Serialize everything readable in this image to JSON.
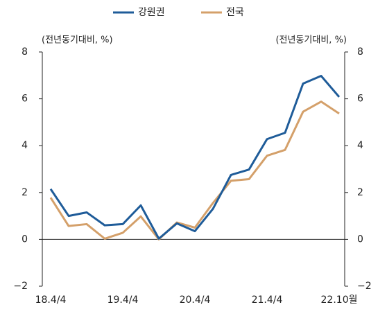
{
  "chart_data": {
    "type": "line",
    "y_label": "(전년동기대비, %)",
    "y2_label": "(전년동기대비, %)",
    "categories": [
      "18.4/4",
      null,
      null,
      null,
      "19.4/4",
      null,
      null,
      null,
      "20.4/4",
      null,
      null,
      null,
      "21.4/4",
      null,
      null,
      null,
      "22.10월"
    ],
    "series": [
      {
        "name": "강원권",
        "color": "#1f5c99",
        "values": [
          2.15,
          1.0,
          1.15,
          0.6,
          0.65,
          1.45,
          0.03,
          0.68,
          0.35,
          1.3,
          2.75,
          2.98,
          4.28,
          4.55,
          6.65,
          6.98,
          6.08
        ]
      },
      {
        "name": "전국",
        "color": "#d4a06a",
        "values": [
          1.78,
          0.57,
          0.65,
          0.03,
          0.28,
          0.98,
          0.0,
          0.72,
          0.5,
          1.55,
          2.5,
          2.57,
          3.57,
          3.82,
          5.45,
          5.88,
          5.37
        ]
      }
    ],
    "ylim": [
      -2,
      8
    ],
    "yticks": [
      {
        "value": -2,
        "label": "−2"
      },
      0,
      2,
      4,
      6,
      8
    ],
    "y2lim": [
      -2,
      8
    ],
    "y2ticks": [
      {
        "value": -2,
        "label": "−2"
      },
      0,
      2,
      4,
      6,
      8
    ],
    "legend": "top"
  }
}
